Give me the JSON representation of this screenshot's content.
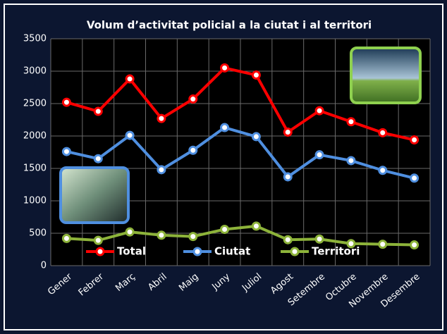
{
  "chart_data": {
    "type": "line",
    "title": "Volum d’activitat policial a la ciutat i al territori",
    "categories": [
      "Gener",
      "Febrer",
      "Març",
      "Abril",
      "Maig",
      "Juny",
      "Juliol",
      "Agost",
      "Setembre",
      "Octubre",
      "Novembre",
      "Desembre"
    ],
    "series": [
      {
        "name": "Total",
        "color": "#ff0000",
        "values": [
          2520,
          2380,
          2880,
          2270,
          2570,
          3050,
          2940,
          2060,
          2390,
          2220,
          2050,
          1940
        ]
      },
      {
        "name": "Ciutat",
        "color": "#4f8fe0",
        "values": [
          1760,
          1650,
          2010,
          1480,
          1780,
          2130,
          1990,
          1370,
          1710,
          1620,
          1470,
          1350
        ]
      },
      {
        "name": "Territori",
        "color": "#8db33a",
        "values": [
          420,
          390,
          520,
          470,
          450,
          560,
          610,
          400,
          410,
          340,
          330,
          320
        ]
      }
    ],
    "ylim": [
      0,
      3500
    ],
    "yticks": [
      0,
      500,
      1000,
      1500,
      2000,
      2500,
      3000,
      3500
    ],
    "grid": true,
    "legend": "bottom"
  }
}
